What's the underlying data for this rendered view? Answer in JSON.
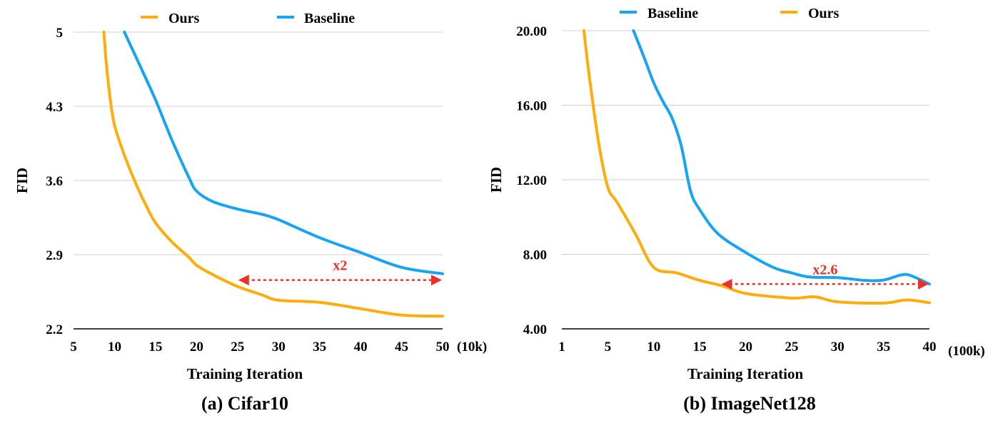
{
  "chart_data": [
    {
      "type": "line",
      "caption": "(a) Cifar10",
      "xlabel": "Training Iteration",
      "ylabel": "FID",
      "x_unit": "(10k)",
      "xlim": [
        5,
        50
      ],
      "ylim": [
        2.2,
        5
      ],
      "xticks": [
        5,
        10,
        15,
        20,
        25,
        30,
        35,
        40,
        45,
        50
      ],
      "yticks": [
        "2.2",
        "2.9",
        "3.6",
        "4.3",
        "5"
      ],
      "grid": true,
      "legend": [
        "Ours",
        "Baseline"
      ],
      "annotation": {
        "text": "x2",
        "from": 25,
        "to": 50,
        "y": 2.66
      },
      "series": [
        {
          "name": "Ours",
          "color": "#ffac0c",
          "points": [
            [
              8.7,
              5.0
            ],
            [
              9,
              4.7
            ],
            [
              9.5,
              4.35
            ],
            [
              10,
              4.12
            ],
            [
              11,
              3.88
            ],
            [
              12,
              3.68
            ],
            [
              13,
              3.5
            ],
            [
              14,
              3.34
            ],
            [
              15,
              3.2
            ],
            [
              17,
              3.02
            ],
            [
              19,
              2.88
            ],
            [
              20,
              2.8
            ],
            [
              22,
              2.71
            ],
            [
              25,
              2.6
            ],
            [
              28,
              2.52
            ],
            [
              30,
              2.47
            ],
            [
              35,
              2.45
            ],
            [
              40,
              2.39
            ],
            [
              45,
              2.33
            ],
            [
              50,
              2.32
            ]
          ]
        },
        {
          "name": "Baseline",
          "color": "#18a4f4",
          "points": [
            [
              11.2,
              5.0
            ],
            [
              13,
              4.7
            ],
            [
              15,
              4.36
            ],
            [
              17,
              3.98
            ],
            [
              19,
              3.64
            ],
            [
              20,
              3.5
            ],
            [
              22,
              3.4
            ],
            [
              25,
              3.33
            ],
            [
              28,
              3.28
            ],
            [
              30,
              3.23
            ],
            [
              35,
              3.06
            ],
            [
              40,
              2.92
            ],
            [
              45,
              2.78
            ],
            [
              50,
              2.72
            ]
          ]
        }
      ]
    },
    {
      "type": "line",
      "caption": "(b) ImageNet128",
      "xlabel": "Training Iteration",
      "ylabel": "FID",
      "x_unit": "(100k)",
      "xlim": [
        0,
        40
      ],
      "ylim": [
        4,
        20
      ],
      "xticks": [
        0,
        5,
        10,
        15,
        20,
        25,
        30,
        35,
        40
      ],
      "xtick_labels": [
        "1",
        "5",
        "10",
        "15",
        "20",
        "25",
        "30",
        "35",
        "40"
      ],
      "yticks": [
        "4.00",
        "8.00",
        "12.00",
        "16.00",
        "20.00"
      ],
      "grid": true,
      "legend": [
        "Baseline",
        "Ours"
      ],
      "annotation": {
        "text": "x2.6",
        "from": 17.3,
        "to": 40,
        "y": 6.4
      },
      "series": [
        {
          "name": "Baseline",
          "color": "#18a4f4",
          "points": [
            [
              7.8,
              20.0
            ],
            [
              9,
              18.5
            ],
            [
              10,
              17.2
            ],
            [
              11,
              16.2
            ],
            [
              12,
              15.3
            ],
            [
              13,
              13.8
            ],
            [
              14,
              11.4
            ],
            [
              15,
              10.4
            ],
            [
              17,
              9.1
            ],
            [
              20,
              8.1
            ],
            [
              23,
              7.3
            ],
            [
              25,
              7.0
            ],
            [
              27,
              6.78
            ],
            [
              30,
              6.75
            ],
            [
              33,
              6.6
            ],
            [
              35,
              6.62
            ],
            [
              37,
              6.9
            ],
            [
              38,
              6.85
            ],
            [
              40,
              6.4
            ]
          ]
        },
        {
          "name": "Ours",
          "color": "#ffac0c",
          "points": [
            [
              2.4,
              20.0
            ],
            [
              3,
              17.5
            ],
            [
              4,
              14.0
            ],
            [
              5,
              11.6
            ],
            [
              6,
              10.8
            ],
            [
              8,
              9.1
            ],
            [
              10,
              7.3
            ],
            [
              12.5,
              7.0
            ],
            [
              15,
              6.6
            ],
            [
              17.5,
              6.3
            ],
            [
              20,
              5.9
            ],
            [
              25,
              5.65
            ],
            [
              27.5,
              5.72
            ],
            [
              30,
              5.45
            ],
            [
              35,
              5.38
            ],
            [
              37.5,
              5.55
            ],
            [
              40,
              5.4
            ]
          ]
        }
      ]
    }
  ]
}
